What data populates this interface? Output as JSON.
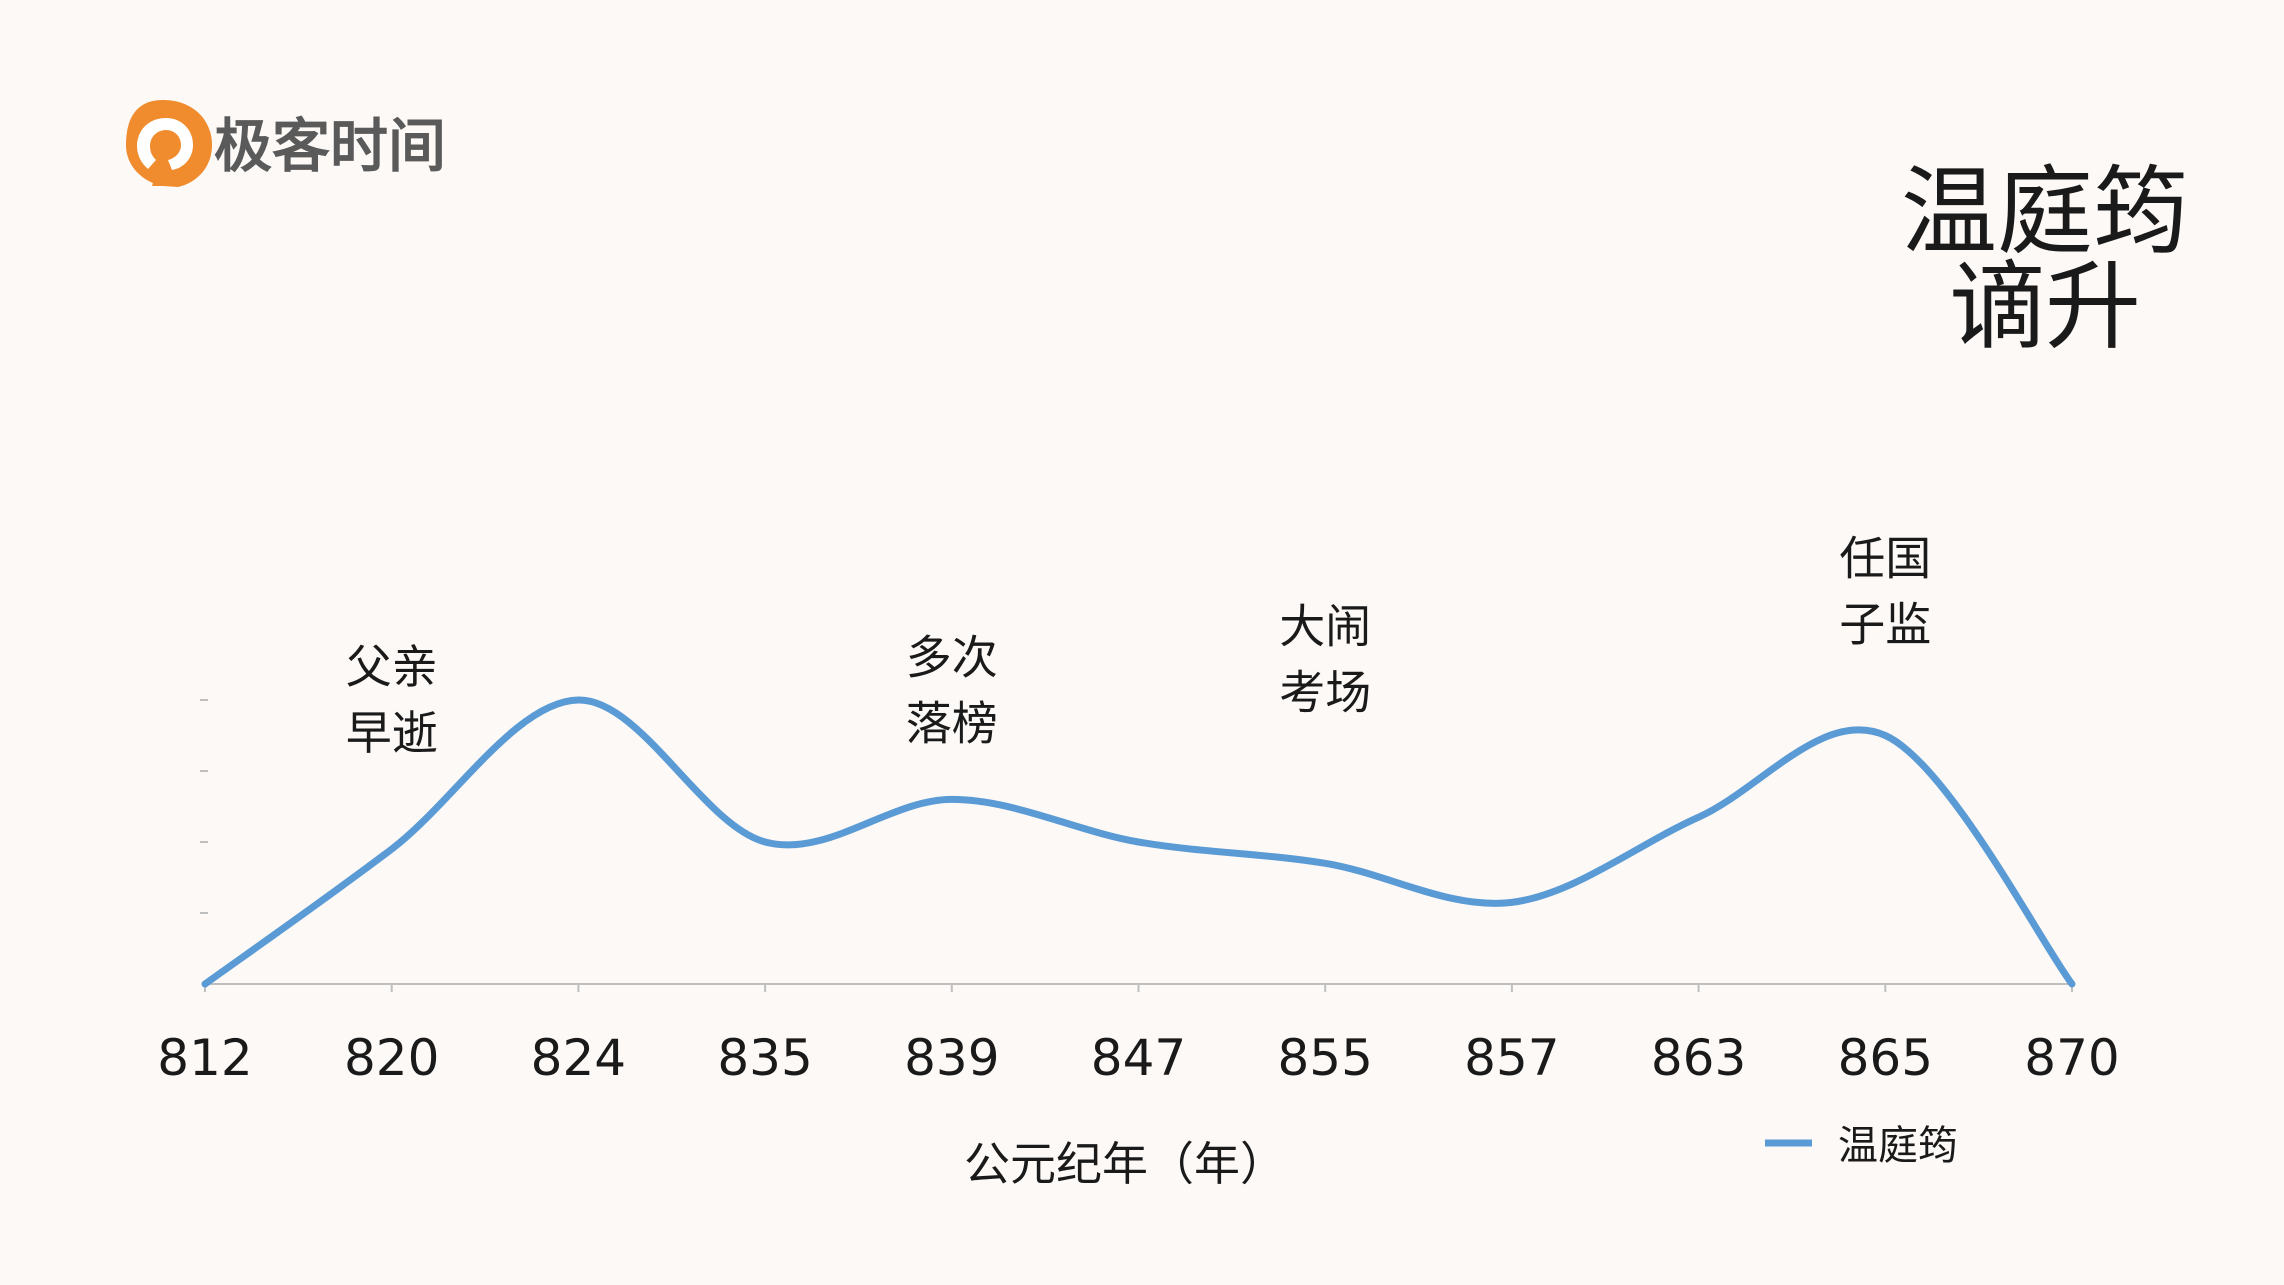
{
  "brand": {
    "name": "极客时间",
    "logo_color": "#f08c2e"
  },
  "title_lines": [
    "温庭筠",
    "谪升"
  ],
  "chart_data": {
    "type": "line",
    "smooth": true,
    "categories": [
      "812",
      "820",
      "824",
      "835",
      "839",
      "847",
      "855",
      "857",
      "863",
      "865",
      "870"
    ],
    "series": [
      {
        "name": "温庭筠",
        "color": "#5b9bd5",
        "values": [
          0,
          1.9,
          4.0,
          2.0,
          2.6,
          2.0,
          1.7,
          1.15,
          2.35,
          3.5,
          0
        ]
      }
    ],
    "ylim": [
      0,
      4.0
    ],
    "xlabel": "公元纪年（年）",
    "ylabel": "",
    "y_tick_labels_shown": false,
    "grid": false,
    "legend": "bottom-right",
    "annotations": [
      {
        "category": "820",
        "lines": [
          "父亲",
          "早逝"
        ]
      },
      {
        "category": "839",
        "lines": [
          "多次",
          "落榜"
        ]
      },
      {
        "category": "855",
        "lines": [
          "大闹",
          "考场"
        ]
      },
      {
        "category": "865",
        "lines": [
          "任国",
          "子监"
        ]
      }
    ]
  }
}
